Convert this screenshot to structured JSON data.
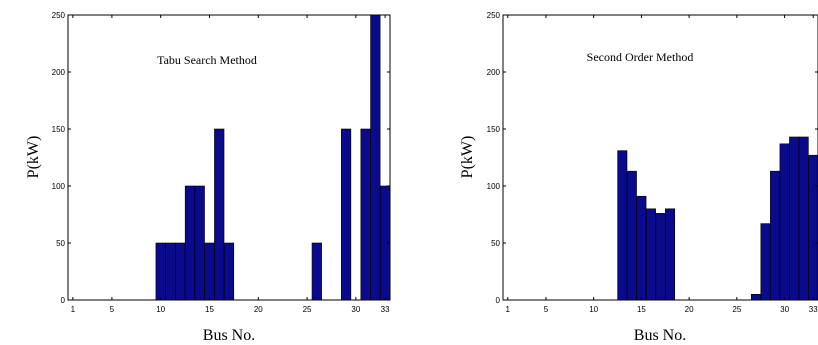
{
  "chart_data": [
    {
      "type": "bar",
      "title": "Tabu Search Method",
      "xlabel": "Bus No.",
      "ylabel": "P(kW)",
      "xlim": [
        0.5,
        33.5
      ],
      "ylim": [
        0,
        250
      ],
      "xticks": [
        1,
        5,
        10,
        15,
        20,
        25,
        30,
        33
      ],
      "yticks": [
        0,
        50,
        100,
        150,
        200,
        250
      ],
      "bar_color": "#0a0a8c",
      "categories": [
        10,
        11,
        12,
        13,
        14,
        15,
        16,
        17,
        26,
        29,
        31,
        32,
        33
      ],
      "values": [
        50,
        50,
        50,
        100,
        100,
        50,
        150,
        50,
        50,
        150,
        150,
        250,
        100
      ]
    },
    {
      "type": "bar",
      "title": "Second Order Method",
      "xlabel": "Bus No.",
      "ylabel": "P(kW)",
      "xlim": [
        0.5,
        33.5
      ],
      "ylim": [
        0,
        250
      ],
      "xticks": [
        1,
        5,
        10,
        15,
        20,
        25,
        30,
        33
      ],
      "yticks": [
        0,
        50,
        100,
        150,
        200,
        250
      ],
      "bar_color": "#0a0a8c",
      "categories": [
        13,
        14,
        15,
        16,
        17,
        18,
        27,
        28,
        29,
        30,
        31,
        32,
        33
      ],
      "values": [
        131,
        113,
        91,
        80,
        76,
        80,
        5,
        67,
        113,
        137,
        143,
        143,
        127
      ]
    }
  ]
}
